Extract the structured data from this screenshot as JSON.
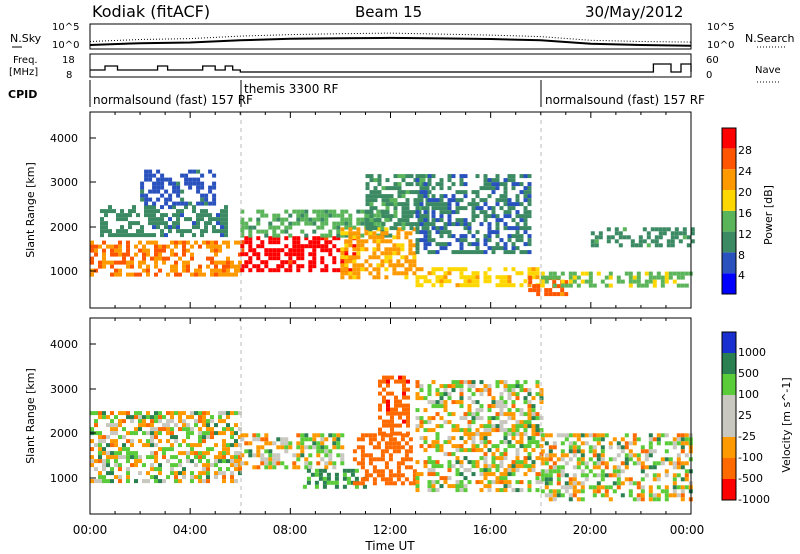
{
  "header": {
    "station": "Kodiak (fitACF)",
    "beam": "Beam 15",
    "date": "30/May/2012"
  },
  "summary": {
    "nsky_label": "N.Sky",
    "nsearch_label": "N.Search",
    "freq_label_line1": "Freq.",
    "freq_label_line2": "[MHz]",
    "nave_label": "Nave",
    "cpid_label": "CPID",
    "noise_ticks": [
      "10^5",
      "10^0"
    ],
    "freq_ticks": [
      "18",
      "8"
    ],
    "nave_ticks": [
      "60",
      "0"
    ],
    "cpid_segments": [
      {
        "label": "normalsound (fast) 157 RF",
        "start_h": 0,
        "end_h": 6
      },
      {
        "label": "themis 3300 RF",
        "start_h": 6,
        "end_h": 18
      },
      {
        "label": "normalsound (fast) 157 RF",
        "start_h": 18,
        "end_h": 24
      }
    ]
  },
  "power_panel": {
    "ylabel": "Slant Range [km]",
    "yticks": [
      "1000",
      "2000",
      "3000",
      "4000"
    ],
    "colorbar_label": "Power [dB]",
    "colorbar_ticks": [
      "4",
      "8",
      "12",
      "16",
      "20",
      "24",
      "28"
    ],
    "colors": [
      "#0000ff",
      "#2a52be",
      "#3c8a64",
      "#5ab45a",
      "#ffd700",
      "#ff9900",
      "#ff5500",
      "#ff0000"
    ]
  },
  "velocity_panel": {
    "ylabel": "Slant Range [km]",
    "yticks": [
      "1000",
      "2000",
      "3000",
      "4000"
    ],
    "colorbar_label": "Velocity [m s^-1]",
    "colorbar_ticks": [
      "1000",
      "500",
      "100",
      "25",
      "-25",
      "-100",
      "-500",
      "-1000"
    ],
    "colors": [
      "#1a2fd0",
      "#2a8050",
      "#5acc3a",
      "#c8c8c0",
      "#c8c8c0",
      "#ff9900",
      "#ff6a00",
      "#ff0000"
    ]
  },
  "xaxis": {
    "label": "Time UT",
    "ticks": [
      "00:00",
      "04:00",
      "08:00",
      "12:00",
      "16:00",
      "20:00",
      "00:00"
    ]
  },
  "chart_data": [
    {
      "type": "line",
      "panel": "noise",
      "x_unit": "hours UT",
      "ylim": [
        1,
        100000
      ],
      "yscale": "log",
      "series": [
        {
          "x": [
            0,
            2,
            4,
            6,
            8,
            10,
            12,
            14,
            16,
            18,
            20,
            22,
            24
          ],
          "values": [
            3,
            8,
            12,
            40,
            90,
            120,
            150,
            110,
            80,
            40,
            6,
            3,
            2
          ]
        },
        {
          "x": [
            0,
            2,
            4,
            6,
            8,
            10,
            12,
            14,
            16,
            18,
            20,
            22,
            24
          ],
          "values": [
            20,
            60,
            100,
            400,
            900,
            1500,
            2000,
            1200,
            700,
            300,
            40,
            20,
            15
          ]
        }
      ]
    },
    {
      "type": "line",
      "panel": "frequency",
      "x_unit": "hours UT",
      "ylim": [
        8,
        18
      ],
      "series": [
        {
          "x": [
            0,
            0.3,
            0.6,
            1.1,
            1.4,
            2.7,
            3.1,
            4.5,
            5.0,
            5.4,
            5.7,
            6.0,
            18.0,
            22.0,
            22.5,
            23.2,
            23.6,
            24.0
          ],
          "values": [
            11,
            11,
            13,
            11,
            11,
            13,
            11,
            13,
            11,
            13,
            11,
            10,
            10,
            10,
            14,
            10,
            14,
            10
          ]
        }
      ]
    },
    {
      "type": "heatmap",
      "panel": "power",
      "x_unit": "hours UT",
      "y_unit": "km",
      "xlim": [
        0,
        24
      ],
      "ylim": [
        180,
        4600
      ],
      "zlabel": "Power [dB]",
      "zlim": [
        0,
        30
      ],
      "regions": [
        {
          "t0": 0.0,
          "t1": 6.0,
          "r0": 900,
          "r1": 1700,
          "value": 22
        },
        {
          "t0": 0.4,
          "t1": 5.5,
          "r0": 1800,
          "r1": 2500,
          "value": 9
        },
        {
          "t0": 2.0,
          "t1": 5.0,
          "r0": 2500,
          "r1": 3300,
          "value": 6
        },
        {
          "t0": 6.0,
          "t1": 10.5,
          "r0": 1000,
          "r1": 1800,
          "value": 28
        },
        {
          "t0": 6.0,
          "t1": 12.0,
          "r0": 1800,
          "r1": 2400,
          "value": 12
        },
        {
          "t0": 10.0,
          "t1": 13.0,
          "r0": 900,
          "r1": 2000,
          "value": 20
        },
        {
          "t0": 11.0,
          "t1": 13.5,
          "r0": 2000,
          "r1": 3200,
          "value": 10
        },
        {
          "t0": 13.0,
          "t1": 17.5,
          "r0": 1400,
          "r1": 3200,
          "value": 8
        },
        {
          "t0": 13.0,
          "t1": 18.0,
          "r0": 700,
          "r1": 1100,
          "value": 18
        },
        {
          "t0": 17.5,
          "t1": 19.0,
          "r0": 500,
          "r1": 900,
          "value": 24
        },
        {
          "t0": 18.0,
          "t1": 24.0,
          "r0": 700,
          "r1": 1000,
          "value": 14
        },
        {
          "t0": 20.0,
          "t1": 24.0,
          "r0": 1600,
          "r1": 2000,
          "value": 10
        }
      ]
    },
    {
      "type": "heatmap",
      "panel": "velocity",
      "x_unit": "hours UT",
      "y_unit": "km",
      "xlim": [
        0,
        24
      ],
      "ylim": [
        180,
        4600
      ],
      "zlabel": "Velocity [m s^-1]",
      "zlim": [
        -1000,
        1000
      ],
      "regions": [
        {
          "t0": 0.0,
          "t1": 6.0,
          "r0": 900,
          "r1": 2500,
          "value": 0
        },
        {
          "t0": 6.0,
          "t1": 10.0,
          "r0": 1200,
          "r1": 2000,
          "value": 0
        },
        {
          "t0": 8.5,
          "t1": 11.0,
          "r0": 800,
          "r1": 1200,
          "value": 150
        },
        {
          "t0": 10.5,
          "t1": 13.0,
          "r0": 900,
          "r1": 2000,
          "value": -300
        },
        {
          "t0": 11.5,
          "t1": 12.7,
          "r0": 2000,
          "r1": 3300,
          "value": -400
        },
        {
          "t0": 13.0,
          "t1": 18.0,
          "r0": 700,
          "r1": 3200,
          "value": 0
        },
        {
          "t0": 18.0,
          "t1": 24.0,
          "r0": 500,
          "r1": 2000,
          "value": 0
        }
      ]
    }
  ]
}
